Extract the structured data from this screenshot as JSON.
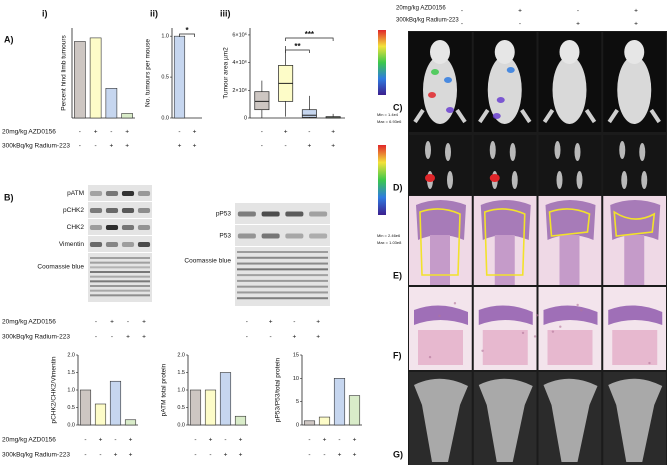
{
  "panel_labels": [
    "A)",
    "i)",
    "ii)",
    "iii)",
    "B)",
    "C)",
    "D)",
    "E)",
    "F)",
    "G)"
  ],
  "treatment_labels": [
    [
      "20mg/kg AZD0156",
      "300kBq/kg Radium-223"
    ],
    [
      "20mg/kg AZD0156",
      "300kBq/kg Radium-223"
    ],
    [
      "20mg/kg AZD0156",
      "300kBq/kg Radium-223"
    ],
    [
      "20mg/kg AZD0156",
      "300kBq/kg Radium-223"
    ]
  ],
  "blots": [
    {
      "rows": [
        "pATM",
        "pCHK2",
        "CHK2",
        "Vimentin",
        "Coomassie blue"
      ],
      "signs": [
        [
          "-",
          "+",
          "-",
          "+"
        ],
        [
          "-",
          "-",
          "+",
          "+"
        ]
      ]
    },
    {
      "rows": [
        "pP53",
        "P53",
        "Coomassie blue"
      ],
      "signs": [
        [
          "-",
          "+",
          "-",
          "+"
        ],
        [
          "-",
          "-",
          "+",
          "+"
        ]
      ]
    }
  ],
  "photo_signs": [
    [
      "-",
      "+",
      "-",
      "+"
    ],
    [
      "-",
      "-",
      "+",
      "+"
    ]
  ],
  "colorbar_labels": [
    "Min = 1.4e4",
    "Max = 6.93e6",
    "Min = 2.46e6",
    "Max = 1.03e8"
  ],
  "chart_data": [
    {
      "type": "bar",
      "ylabel": "Percent hind limb tumours",
      "categories": [
        null,
        null,
        null,
        null
      ],
      "values": [
        85,
        89,
        33,
        5
      ],
      "colors": [
        "#cdc6c2",
        "#fdfcc8",
        "#c6d6ef",
        "#d9ecc9"
      ],
      "ylim": [
        0,
        100
      ],
      "treatment_signs": [
        [
          "-",
          "+",
          "-",
          "+"
        ],
        [
          "-",
          "-",
          "+",
          "+"
        ]
      ]
    },
    {
      "type": "bar",
      "ylabel": "No. tumours per mouse",
      "categories": [
        null,
        null
      ],
      "values": [
        1,
        0
      ],
      "colors": [
        "#c6d6ef",
        "#d9ecc9"
      ],
      "ylim": [
        0,
        1.1
      ],
      "yticks": [
        {
          "value": 0,
          "label": "0.0"
        },
        {
          "value": 0.5,
          "label": "0.5"
        },
        {
          "value": 1,
          "label": "1.0"
        }
      ],
      "annotations": [
        "*"
      ],
      "treatment_signs": [
        [
          "-",
          "+"
        ],
        [
          "+",
          "+"
        ]
      ]
    },
    {
      "type": "box",
      "ylabel": "Tumour area µm2",
      "categories": [
        null,
        null,
        null,
        null
      ],
      "whislo": [
        0,
        100000,
        0,
        0
      ],
      "q1": [
        600000,
        1200000,
        50000,
        0
      ],
      "median": [
        1200000,
        2500000,
        200000,
        20000
      ],
      "q3": [
        1900000,
        3800000,
        600000,
        100000
      ],
      "whishi": [
        2700000,
        5200000,
        1600000,
        300000
      ],
      "colors": [
        "#cdc6c2",
        "#fdfcc8",
        "#c6d6ef",
        "#d9ecc9"
      ],
      "ylim": [
        0,
        6500000
      ],
      "yticks": [
        0,
        {
          "value": 2000000,
          "label": "2×10⁶"
        },
        {
          "value": 4000000,
          "label": "4×10⁶"
        },
        {
          "value": 6000000,
          "label": "6×10⁶"
        }
      ],
      "annotations": [
        "***",
        "**"
      ],
      "treatment_signs": [
        [
          "-",
          "+",
          "-",
          "+"
        ],
        [
          "-",
          "-",
          "+",
          "+"
        ]
      ]
    },
    {
      "type": "bar",
      "ylabel": "pCHK2/CHK2/Vimentin",
      "categories": [
        null,
        null,
        null,
        null
      ],
      "values": [
        1.0,
        0.6,
        1.25,
        0.15
      ],
      "colors": [
        "#cdc6c2",
        "#fdfcc8",
        "#c6d6ef",
        "#d9ecc9"
      ],
      "ylim": [
        0,
        2
      ],
      "yticks": [
        {
          "value": 0,
          "label": "0.0"
        },
        {
          "value": 0.5,
          "label": "0.5"
        },
        {
          "value": 1,
          "label": "1.0"
        },
        {
          "value": 1.5,
          "label": "1.5"
        },
        {
          "value": 2,
          "label": "2.0"
        }
      ],
      "treatment_signs": [
        [
          "-",
          "+",
          "-",
          "+"
        ],
        [
          "-",
          "-",
          "+",
          "+"
        ]
      ]
    },
    {
      "type": "bar",
      "ylabel": "pATM total protein",
      "categories": [
        null,
        null,
        null,
        null
      ],
      "values": [
        1.0,
        1.0,
        1.5,
        0.25
      ],
      "colors": [
        "#cdc6c2",
        "#fdfcc8",
        "#c6d6ef",
        "#d9ecc9"
      ],
      "ylim": [
        0,
        2
      ],
      "yticks": [
        {
          "value": 0,
          "label": "0.0"
        },
        {
          "value": 0.5,
          "label": "0.5"
        },
        {
          "value": 1,
          "label": "1.0"
        },
        {
          "value": 1.5,
          "label": "1.5"
        },
        {
          "value": 2,
          "label": "2.0"
        }
      ],
      "treatment_signs": [
        [
          "-",
          "+",
          "-",
          "+"
        ],
        [
          "-",
          "-",
          "+",
          "+"
        ]
      ]
    },
    {
      "type": "bar",
      "ylabel": "pP53/P53/total protein",
      "categories": [
        null,
        null,
        null,
        null
      ],
      "values": [
        0.9,
        1.7,
        10,
        6.3
      ],
      "colors": [
        "#cdc6c2",
        "#fdfcc8",
        "#c6d6ef",
        "#d9ecc9"
      ],
      "ylim": [
        0,
        15
      ],
      "yticks": [
        0,
        5,
        10,
        15
      ],
      "treatment_signs": [
        [
          "-",
          "+",
          "-",
          "+"
        ],
        [
          "-",
          "-",
          "+",
          "+"
        ]
      ]
    }
  ]
}
